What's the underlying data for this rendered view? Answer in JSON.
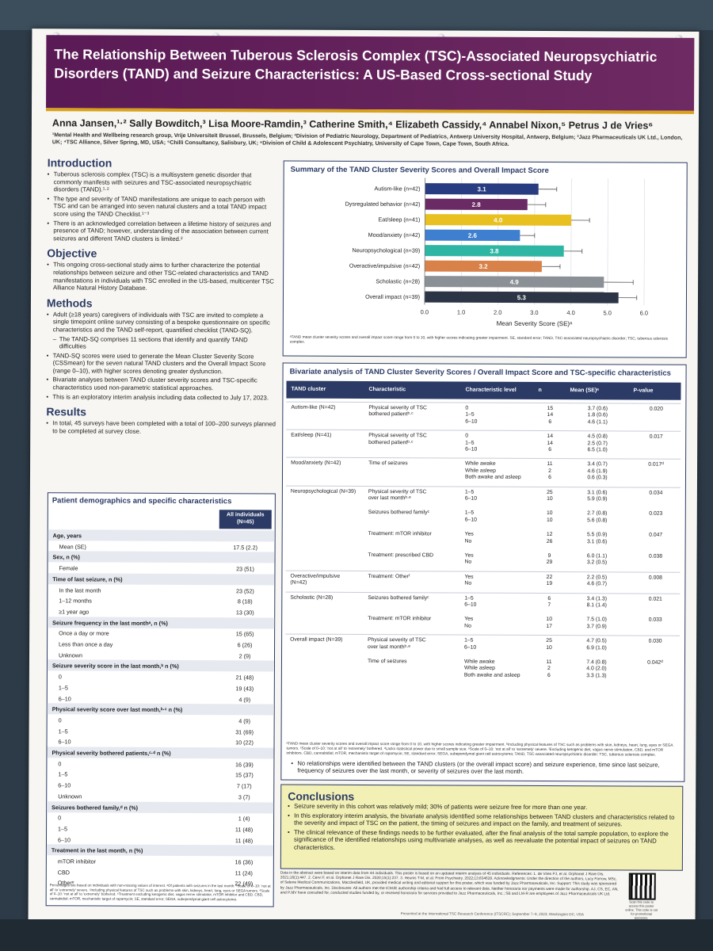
{
  "title": "The Relationship Between Tuberous Sclerosis Complex (TSC)-Associated Neuropsychiatric Disorders (TAND) and Seizure Characteristics: A US-Based Cross-sectional Study",
  "authors": "Anna Jansen,¹·² Sally Bowditch,³ Lisa Moore-Ramdin,³ Catherine Smith,⁴ Elizabeth Cassidy,⁴ Annabel Nixon,⁵ Petrus J de Vries⁶",
  "affiliations": "¹Mental Health and Wellbeing research group, Vrije Universiteit Brussel, Brussels, Belgium; ²Division of Pediatric Neurology, Department of Pediatrics, Antwerp University Hospital, Antwerp, Belgium; ³Jazz Pharmaceuticals UK Ltd., London, UK; ⁴TSC Alliance, Silver Spring, MD, USA; ⁵Chilli Consultancy, Salisbury, UK; ⁶Division of Child & Adolescent Psychiatry, University of Cape Town, Cape Town, South Africa.",
  "intro": {
    "heading": "Introduction",
    "bullets": [
      "Tuberous sclerosis complex (TSC) is a multisystem genetic disorder that commonly manifests with seizures and TSC-associated neuropsychiatric disorders (TAND).¹·²",
      "The type and severity of TAND manifestations are unique to each person with TSC and can be arranged into seven natural clusters and a total TAND impact score using the TAND Checklist.¹⁻³",
      "There is an acknowledged correlation between a lifetime history of seizures and presence of TAND; however, understanding of the association between current seizures and different TAND clusters is limited.²"
    ]
  },
  "objective": {
    "heading": "Objective",
    "bullets": [
      "This ongoing cross-sectional study aims to further characterize the potential relationships between seizure and other TSC-related characteristics and TAND manifestations in individuals with TSC enrolled in the US-based, multicenter TSC Alliance Natural History Database."
    ]
  },
  "methods": {
    "heading": "Methods",
    "bullets": [
      "Adult (≥18 years) caregivers of individuals with TSC are invited to complete a single timepoint online survey consisting of a bespoke questionnaire on specific characteristics and the TAND self-report, quantified checklist (TAND-SQ).",
      "The TAND-SQ comprises 11 sections that identify and quantify TAND difficulties",
      "TAND-SQ scores were used to generate the Mean Cluster Severity Score (CSSmean) for the seven natural TAND clusters and the Overall Impact Score (range 0–10), with higher scores denoting greater dysfunction.",
      "Bivariate analyses between TAND cluster severity scores and TSC-specific characteristics used non-parametric statistical approaches.",
      "This is an exploratory interim analysis including data collected to July 17, 2023."
    ]
  },
  "results": {
    "heading": "Results",
    "bullets": [
      "In total, 45 surveys have been completed with a total of 100–200 surveys planned to be completed at survey close."
    ]
  },
  "demographics": {
    "title": "Patient demographics and specific characteristics",
    "col_header": "All individuals (N=45)",
    "rows": [
      {
        "label": "Age, years",
        "value": "",
        "kind": "cat"
      },
      {
        "label": "Mean (SE)",
        "value": "17.5 (2.2)",
        "kind": "ind"
      },
      {
        "label": "Sex, n (%)",
        "value": "",
        "kind": "cat"
      },
      {
        "label": "Female",
        "value": "23 (51)",
        "kind": "ind"
      },
      {
        "label": "Time of last seizure, n (%)",
        "value": "",
        "kind": "cat"
      },
      {
        "label": "In the last month",
        "value": "23 (52)",
        "kind": "ind"
      },
      {
        "label": "1–12 months",
        "value": "8 (18)",
        "kind": "ind"
      },
      {
        "label": "≥1 year ago",
        "value": "13 (30)",
        "kind": "ind"
      },
      {
        "label": "Seizure frequency in the last monthᵃ, n (%)",
        "value": "",
        "kind": "cat"
      },
      {
        "label": "Once a day or more",
        "value": "15 (65)",
        "kind": "ind"
      },
      {
        "label": "Less than once a day",
        "value": "6 (26)",
        "kind": "ind"
      },
      {
        "label": "Unknown",
        "value": "2 (9)",
        "kind": "ind"
      },
      {
        "label": "Seizure severity score in the last month,ᵇ n (%)",
        "value": "",
        "kind": "cat"
      },
      {
        "label": "0",
        "value": "21 (48)",
        "kind": "ind"
      },
      {
        "label": "1–5",
        "value": "19 (43)",
        "kind": "ind"
      },
      {
        "label": "6–10",
        "value": "4 (9)",
        "kind": "ind"
      },
      {
        "label": "Physical severity score over last month,ᵇ·ᶜ n (%)",
        "value": "",
        "kind": "cat"
      },
      {
        "label": "0",
        "value": "4 (9)",
        "kind": "ind"
      },
      {
        "label": "1–5",
        "value": "31 (69)",
        "kind": "ind"
      },
      {
        "label": "6–10",
        "value": "10 (22)",
        "kind": "ind"
      },
      {
        "label": "Physical severity bothered patients,ᶜ·ᵈ n (%)",
        "value": "",
        "kind": "cat"
      },
      {
        "label": "0",
        "value": "16 (39)",
        "kind": "ind"
      },
      {
        "label": "1–5",
        "value": "15 (37)",
        "kind": "ind"
      },
      {
        "label": "6–10",
        "value": "7 (17)",
        "kind": "ind"
      },
      {
        "label": "Unknown",
        "value": "3 (7)",
        "kind": "ind"
      },
      {
        "label": "Seizures bothered family,ᵈ n (%)",
        "value": "",
        "kind": "cat"
      },
      {
        "label": "0",
        "value": "1 (4)",
        "kind": "ind"
      },
      {
        "label": "1–5",
        "value": "11 (48)",
        "kind": "ind"
      },
      {
        "label": "6–10",
        "value": "11 (48)",
        "kind": "ind"
      },
      {
        "label": "Treatment in the last month, n (%)",
        "value": "",
        "kind": "cat"
      },
      {
        "label": "mTOR inhibitor",
        "value": "16 (36)",
        "kind": "ind"
      },
      {
        "label": "CBD",
        "value": "11 (24)",
        "kind": "ind"
      },
      {
        "label": "Otherᵉ",
        "value": "22 (49)",
        "kind": "ind"
      }
    ],
    "footnote": "Percentages are based on individuals with non-missing values of interest. ᵃOf patients with seizures in the last month. ᵇScale of 0–10: 'not at all' to 'extremely' severe. ᶜIncluding physical features of TSC such as problems with skin, kidneys, heart, lung, eyes or SEGA tumors. ᵈScale of 0–10: 'not at all' to 'extremely' bothered. ᵉTreatment excluding ketogenic diet, vagus nerve stimulator, mTOR inhibitor and CBD. CBD, cannabidiol; mTOR, mechanistic target of rapamycin; SE, standard error; SEGA, subependymal giant cell astrocytoma."
  },
  "chart_data": {
    "type": "bar",
    "orientation": "horizontal",
    "title": "Summary of the TAND Cluster Severity Scores and Overall Impact Score",
    "xlabel": "Mean Severity Score (SE)ᵃ",
    "xlim": [
      0,
      6
    ],
    "xticks": [
      "0.0",
      "1.0",
      "2.0",
      "3.0",
      "4.0",
      "5.0",
      "6.0"
    ],
    "categories": [
      "Autism-like (n=42)",
      "Dysregulated behavior (n=42)",
      "Eat/sleep (n=41)",
      "Mood/anxiety (n=42)",
      "Neuropsychological (n=39)",
      "Overactive/impulsive (n=42)",
      "Scholastic (n=28)",
      "Overall impact (n=39)"
    ],
    "values": [
      3.1,
      2.8,
      4.0,
      2.6,
      3.8,
      3.2,
      4.9,
      5.3
    ],
    "errors": [
      0.5,
      0.5,
      0.5,
      0.4,
      0.5,
      0.5,
      0.8,
      0.5
    ],
    "value_labels": [
      "3.1",
      "2.8",
      "4.0",
      "2.6",
      "3.8",
      "3.2",
      "4.9",
      "5.3"
    ],
    "colors": [
      "#283c82",
      "#6a2a63",
      "#e8c020",
      "#3f7fcf",
      "#2fb5a3",
      "#d8824a",
      "#8b9096",
      "#2b3545"
    ],
    "grid": true,
    "footnote": "ᵃTAND mean cluster severity scores and overall impact score range from 0 to 10, with higher scores indicating greater impairment. SE, standard error; TAND, TSC-associated neuropsychiatric disorder; TSC, tuberous sclerosis complex."
  },
  "bivariate": {
    "title": "Bivariate analysis of TAND Cluster Severity Scores / Overall Impact Score and TSC-specific characteristics",
    "headers": [
      "TAND cluster",
      "Characteristic",
      "Characteristic level",
      "n",
      "Mean (SE)ᵃ",
      "P-value"
    ],
    "rows": [
      {
        "cluster": "Autism-like (N=42)",
        "characteristic": "Physical severity of TSC\nbothered patientᵇ·ᶜ",
        "levels": "0\n1–5\n6–10",
        "n": "15\n14\n6",
        "mean": "3.7 (0.6)\n1.8 (0.6)\n4.6 (1.1)",
        "p": "0.020"
      },
      {
        "cluster": "Eat/sleep (N=41)",
        "characteristic": "Physical severity of TSC\nbothered patientᵇ·ᶜ",
        "levels": "0\n1–5\n6–10",
        "n": "14\n14\n6",
        "mean": "4.5 (0.8)\n2.5 (0.7)\n6.5 (1.0)",
        "p": "0.017"
      },
      {
        "cluster": "Mood/anxiety (N=42)",
        "characteristic": "Time of seizures",
        "levels": "While awake\nWhile asleep\nBoth awake and asleep",
        "n": "11\n2\n6",
        "mean": "3.4 (0.7)\n4.6 (1.9)\n0.6 (0.3)",
        "p": "0.017ᵈ"
      },
      {
        "cluster": "Neuropsychological (N=39)",
        "characteristic": "Physical severity of TSC\nover last monthᵇ·ᵉ",
        "levels": "1–5\n6–10",
        "n": "25\n10",
        "mean": "3.1 (0.6)\n5.9 (0.9)",
        "p": "0.034"
      },
      {
        "cluster": "",
        "characteristic": "Seizures bothered familyᶜ",
        "levels": "1–5\n6–10",
        "n": "10\n10",
        "mean": "2.7 (0.8)\n5.6 (0.8)",
        "p": "0.023"
      },
      {
        "cluster": "",
        "characteristic": "Treatment: mTOR inhibitor",
        "levels": "Yes\nNo",
        "n": "12\n26",
        "mean": "5.5 (0.9)\n3.1 (0.6)",
        "p": "0.047"
      },
      {
        "cluster": "",
        "characteristic": "Treatment: prescribed CBD",
        "levels": "Yes\nNo",
        "n": "9\n29",
        "mean": "6.0 (1.1)\n3.2 (0.5)",
        "p": "0.038"
      },
      {
        "cluster": "Overactive/impulsive\n(N=42)",
        "characteristic": "Treatment: Otherᶠ",
        "levels": "Yes\nNo",
        "n": "22\n19",
        "mean": "2.2 (0.5)\n4.6 (0.7)",
        "p": "0.008"
      },
      {
        "cluster": "Scholastic (N=28)",
        "characteristic": "Seizures bothered familyᶜ",
        "levels": "1–5\n6–10",
        "n": "6\n7",
        "mean": "3.4 (1.3)\n8.1 (1.4)",
        "p": "0.021"
      },
      {
        "cluster": "",
        "characteristic": "Treatment: mTOR inhibitor",
        "levels": "Yes\nNo",
        "n": "10\n17",
        "mean": "7.5 (1.0)\n3.7 (0.9)",
        "p": "0.033"
      },
      {
        "cluster": "Overall impact (N=39)",
        "characteristic": "Physical severity of TSC\nover last monthᵇ·ᵉ",
        "levels": "1–5\n6–10",
        "n": "25\n10",
        "mean": "4.7 (0.5)\n6.9 (1.0)",
        "p": "0.030"
      },
      {
        "cluster": "",
        "characteristic": "Time of seizures",
        "levels": "While awake\nWhile asleep\nBoth awake and asleep",
        "n": "11\n2\n6",
        "mean": "7.4 (0.8)\n4.0 (2.0)\n3.3 (1.3)",
        "p": "0.042ᵈ"
      }
    ],
    "footnote": "ᵃTAND mean cluster severity scores and overall impact score range from 0 to 10, with higher scores indicating greater impairment. ᵇIncluding physical features of TSC such as problems with skin, kidneys, heart, lung, eyes or SEGA tumors. ᶜScale of 0–10: 'not at all' to 'extremely' bothered. ᵈLacks statistical power due to small sample size. ᵉScale of 0–10: 'not at all' to 'extremely' severe. ᶠExcluding ketogenic diet, vagus nerve stimulation, CBD, and mTOR inhibitors. CBD, cannabidiol; mTOR, mechanistic target of rapamycin; SE, standard error; SEGA, subependymal giant cell astrocytoma; TAND, TSC-associated neuropsychiatric disorder; TSC, tuberous sclerosis complex.",
    "note": "No relationships were identified between the TAND clusters (or the overall impact score) and seizure experience, time since last seizure, frequency of seizures over the last month, or severity of seizures over the last month."
  },
  "conclusions": {
    "heading": "Conclusions",
    "bullets": [
      "Seizure severity in this cohort was relatively mild; 30% of patients were seizure free for more than one year.",
      "In this exploratory interim analysis, the bivariate analysis identified some relationships between TAND clusters and characteristics related to the severity and impact of TSC on the patient, the timing of seizures and impact on the family, and treatment of seizures.",
      "The clinical relevance of these findings needs to be further evaluated, after the final analysis of the total sample population, to explore the significance of the identified relationships using multivariate analyses, as well as reevaluate the potential impact of seizures on TAND characteristics."
    ]
  },
  "references": "Data in the abstract were based on interim data from 44 individuals. This poster is based on an updated interim analysis of 45 individuals. References: 1. de Vries PJ, et al. Orphanet J Rare Dis. 2021;16(1):447. 2. Cervi F, et al. Orphanet J Rare Dis. 2020;15(1):237. 3. Heunis T-M, et al. Front Psychiatry. 2022;13:834628. Acknowledgments: Under the direction of the authors, Lucy Farrow, MSc, of Selene Medical Communications, Macclesfield, UK, provided medical writing and editorial support for this poster, which was funded by Jazz Pharmaceuticals, Inc. Support: This study was sponsored by Jazz Pharmaceuticals, Inc. Disclosures: All authors met the ICMJE authorship criteria and had full access to relevant data. Neither honoraria nor payments were made for authorship. AJ, CS, EC, AN, and PJdV have consulted for, conducted studies funded by, or received honoraria for services provided to Jazz Pharmaceuticals, Inc.; SB and LM-R are employees of Jazz Pharmaceuticals UK Ltd.",
  "qr_text": "Scan this code to access this poster online. This code is not for promotional purposes.",
  "presented": "Presented at the International TSC Research Conference (ITSCRC); September 7–9, 2023; Washington DC, USA"
}
